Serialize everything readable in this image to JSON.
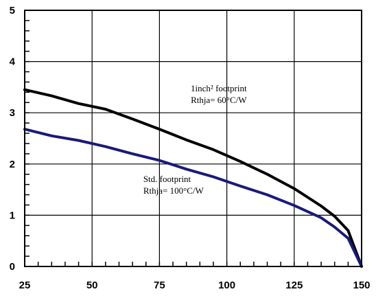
{
  "chart_data": {
    "type": "line",
    "title": "",
    "xlabel": "",
    "ylabel": "",
    "xlim": [
      25,
      150
    ],
    "ylim": [
      0,
      5
    ],
    "x_ticks": [
      25,
      50,
      75,
      100,
      125,
      150
    ],
    "y_ticks": [
      0,
      1,
      2,
      3,
      4,
      5
    ],
    "grid": true,
    "series": [
      {
        "color": "#000000",
        "points": [
          [
            25,
            3.45
          ],
          [
            35,
            3.33
          ],
          [
            45,
            3.18
          ],
          [
            55,
            3.07
          ],
          [
            65,
            2.88
          ],
          [
            75,
            2.68
          ],
          [
            85,
            2.47
          ],
          [
            95,
            2.28
          ],
          [
            105,
            2.05
          ],
          [
            115,
            1.8
          ],
          [
            125,
            1.52
          ],
          [
            135,
            1.18
          ],
          [
            140,
            0.98
          ],
          [
            145,
            0.7
          ],
          [
            150,
            0.0
          ]
        ]
      },
      {
        "color": "#1a1a7a",
        "points": [
          [
            25,
            2.68
          ],
          [
            35,
            2.55
          ],
          [
            45,
            2.46
          ],
          [
            55,
            2.34
          ],
          [
            65,
            2.2
          ],
          [
            75,
            2.07
          ],
          [
            85,
            1.9
          ],
          [
            95,
            1.75
          ],
          [
            105,
            1.57
          ],
          [
            115,
            1.4
          ],
          [
            125,
            1.19
          ],
          [
            135,
            0.95
          ],
          [
            140,
            0.77
          ],
          [
            145,
            0.55
          ],
          [
            150,
            0.0
          ]
        ]
      }
    ],
    "annotations": [
      {
        "lines": [
          "1inch² footprint",
          "Rthja= 60°C/W"
        ],
        "x": 97,
        "y": 3.42
      },
      {
        "lines": [
          "Std. footprint",
          "Rthja= 100°C/W"
        ],
        "x": 69,
        "y": 1.65
      }
    ]
  }
}
